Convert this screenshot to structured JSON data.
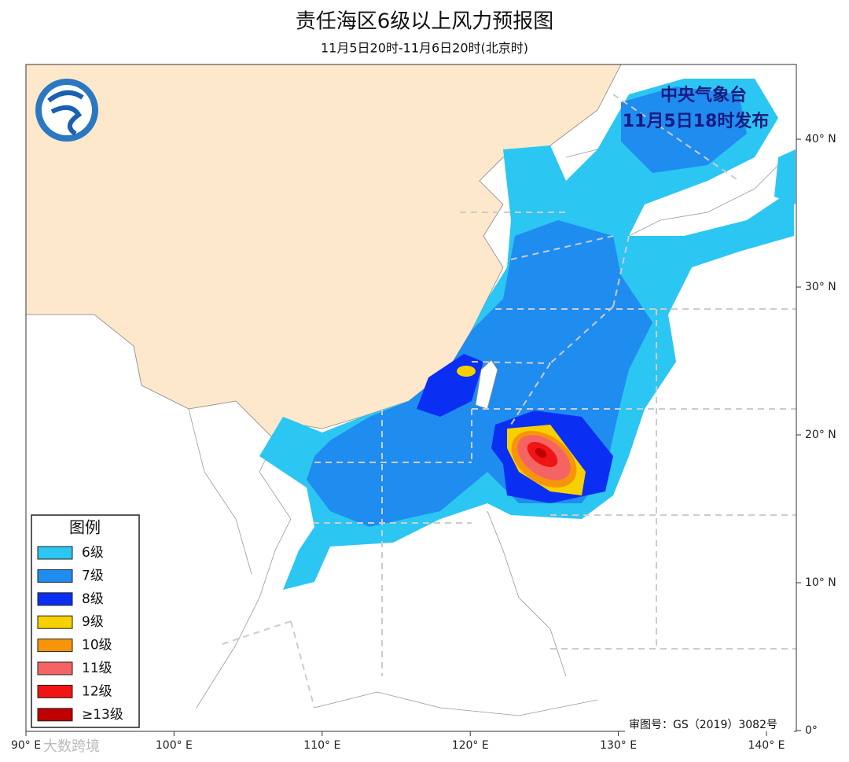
{
  "map": {
    "title": "责任海区6级以上风力预报图",
    "subtitle": "11月5日20时-11月6日20时(北京时)",
    "issuer": [
      "中央气象台",
      "11月5日18时发布"
    ],
    "legend": {
      "title": "图例",
      "items": [
        {
          "label": "6级",
          "color": "#2cc6f2"
        },
        {
          "label": "7级",
          "color": "#1f8cf0"
        },
        {
          "label": "8级",
          "color": "#0b2ff2"
        },
        {
          "label": "9级",
          "color": "#f7d000"
        },
        {
          "label": "10级",
          "color": "#f7950a"
        },
        {
          "label": "11级",
          "color": "#f56464"
        },
        {
          "label": "12级",
          "color": "#f01414"
        },
        {
          "label": "≥13级",
          "color": "#c00000"
        }
      ]
    },
    "lon_labels": [
      "90° E",
      "100° E",
      "110° E",
      "120° E",
      "130° E",
      "140° E"
    ],
    "lat_labels": [
      "40° N",
      "30° N",
      "20° N",
      "10° N",
      "0°"
    ],
    "approval": "审图号：GS（2019）3082号",
    "watermark": "大数跨境"
  }
}
